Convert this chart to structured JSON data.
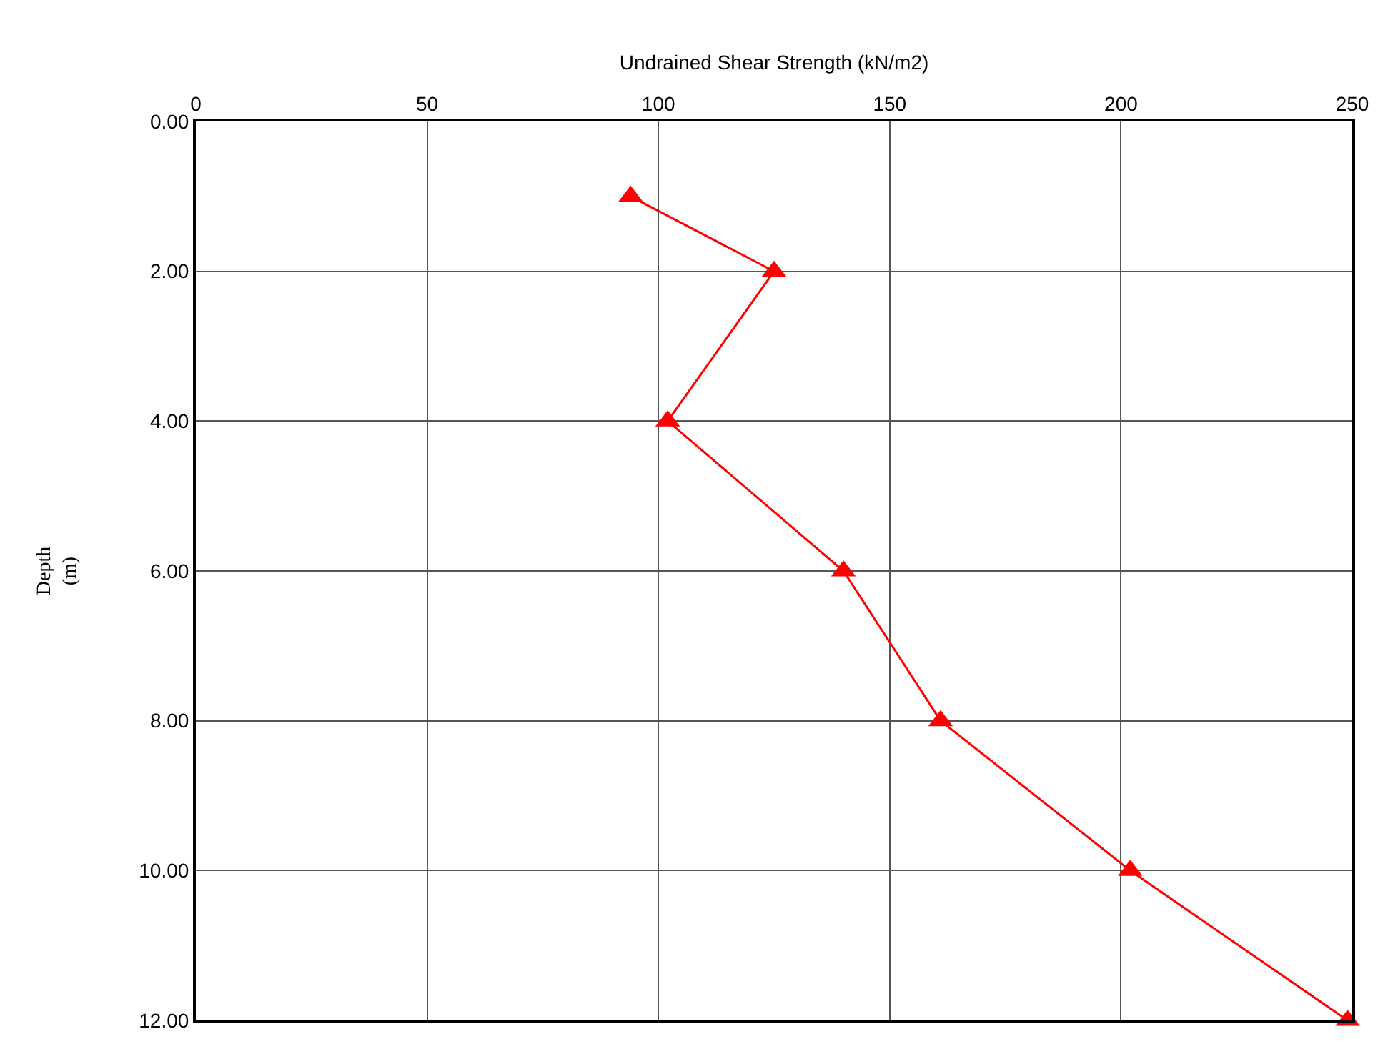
{
  "chart_data": {
    "type": "line",
    "xlabel": "Undrained Shear Strength (kN/m2)",
    "ylabel": "Depth\n(m)",
    "x": [
      94,
      125,
      102,
      140,
      161,
      202,
      249
    ],
    "series": [
      {
        "color": "#ff0000",
        "values": [
          1,
          2,
          4,
          6,
          8,
          10,
          12
        ]
      }
    ],
    "xlim": [
      0,
      250
    ],
    "xticks": [
      0,
      50,
      100,
      150,
      200,
      250
    ],
    "ylim": [
      12,
      0
    ],
    "yticks": [
      {
        "value": 0,
        "label": "0.00"
      },
      {
        "value": 2,
        "label": "2.00"
      },
      {
        "value": 4,
        "label": "4.00"
      },
      {
        "value": 6,
        "label": "6.00"
      },
      {
        "value": 8,
        "label": "8.00"
      },
      {
        "value": 10,
        "label": "10.00"
      },
      {
        "value": 12,
        "label": "12.00"
      }
    ],
    "grid": true,
    "legend": false,
    "marker": "triangle",
    "line_style": "solid"
  }
}
